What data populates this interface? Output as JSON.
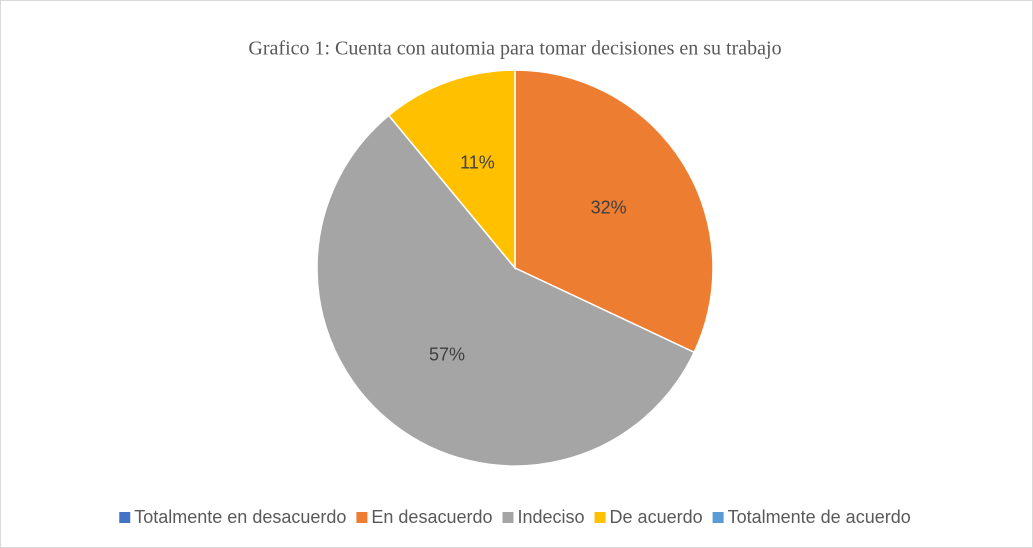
{
  "chart_data": {
    "type": "pie",
    "title": "Grafico 1: Cuenta con automia para tomar decisiones en su trabajo",
    "categories": [
      "Totalmente en desacuerdo",
      "En desacuerdo",
      "Indeciso",
      "De acuerdo",
      "Totalmente de acuerdo"
    ],
    "values": [
      0,
      32,
      57,
      11,
      0
    ],
    "value_labels": [
      null,
      "32%",
      "57%",
      "11%",
      null
    ],
    "colors": [
      "#4472c4",
      "#ed7d31",
      "#a5a5a5",
      "#ffc000",
      "#5b9bd5"
    ],
    "legend": "bottom"
  }
}
